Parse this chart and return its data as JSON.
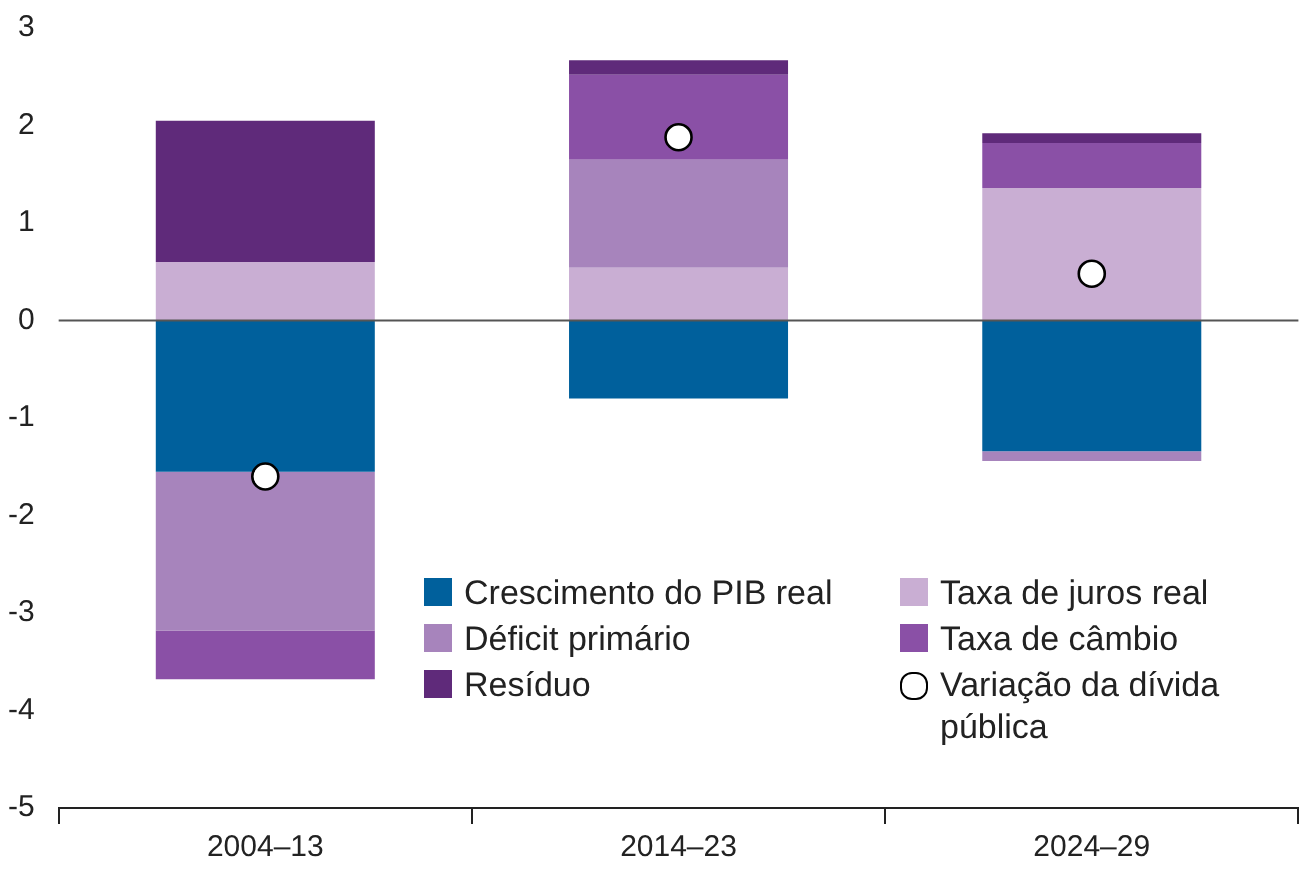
{
  "chart_data": {
    "type": "bar",
    "stacked": true,
    "categories": [
      "2004–13",
      "2014–23",
      "2024–29"
    ],
    "series": [
      {
        "name": "Crescimento do PIB real",
        "color": "#00609c",
        "values": [
          -1.55,
          -0.8,
          -1.34
        ]
      },
      {
        "name": "Taxa de juros real",
        "color": "#c9aed3",
        "values": [
          0.6,
          0.54,
          1.36
        ]
      },
      {
        "name": "Déficit primário",
        "color": "#a784bc",
        "values": [
          -1.63,
          1.11,
          -0.1
        ]
      },
      {
        "name": "Taxa de câmbio",
        "color": "#8a50a6",
        "values": [
          -0.5,
          0.87,
          0.46
        ]
      },
      {
        "name": "Resíduo",
        "color": "#5f2a7a",
        "values": [
          1.45,
          0.15,
          0.1
        ]
      },
      {
        "name": "Variação da dívida pública",
        "type": "scatter",
        "color": "#ffffff",
        "marker": "circle",
        "values": [
          -1.6,
          1.88,
          0.48
        ]
      }
    ],
    "ylim": [
      -5,
      3
    ],
    "yticks": [
      -5,
      -4,
      -3,
      -2,
      -1,
      0,
      1,
      2,
      3
    ],
    "grid": false,
    "legend": "bottom right",
    "ref_lines": [
      {
        "axis": "y",
        "value": 0,
        "color": "#555555"
      }
    ]
  }
}
